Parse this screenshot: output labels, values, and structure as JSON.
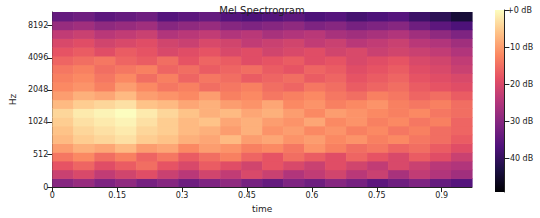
{
  "chart_data": {
    "type": "heatmap",
    "title": "Mel Spectrogram",
    "x_label": "time",
    "y_label": "Hz",
    "xlim": [
      0,
      0.97
    ],
    "xticks": [
      0,
      0.15,
      0.3,
      0.45,
      0.6,
      0.75,
      0.9
    ],
    "ylim": [
      0,
      11025
    ],
    "yticks": [
      0,
      512,
      1024,
      2048,
      4096,
      8192
    ],
    "x_edges": [
      0,
      0.0485,
      0.097,
      0.1455,
      0.194,
      0.2425,
      0.291,
      0.3395,
      0.388,
      0.4365,
      0.485,
      0.5335,
      0.582,
      0.6305,
      0.679,
      0.7275,
      0.776,
      0.8245,
      0.873,
      0.9215,
      0.97
    ],
    "y_edges": [
      0,
      137,
      273,
      410,
      546,
      683,
      819,
      956,
      1136,
      1373,
      1659,
      2004,
      2422,
      2926,
      3536,
      4272,
      5162,
      6237,
      7536,
      9106,
      11025
    ],
    "z": [
      [
        -30,
        -28,
        -31,
        -29,
        -32,
        -30,
        -33,
        -31,
        -29,
        -32,
        -34,
        -31,
        -33,
        -30,
        -32,
        -35,
        -33,
        -31,
        -34,
        -36
      ],
      [
        -22,
        -20,
        -23,
        -21,
        -19,
        -22,
        -24,
        -21,
        -23,
        -20,
        -22,
        -25,
        -23,
        -21,
        -24,
        -22,
        -26,
        -23,
        -25,
        -27
      ],
      [
        -18,
        -16,
        -19,
        -17,
        -15,
        -18,
        -20,
        -17,
        -19,
        -21,
        -18,
        -20,
        -22,
        -19,
        -21,
        -23,
        -20,
        -22,
        -24,
        -25
      ],
      [
        -14,
        -12,
        -15,
        -13,
        -16,
        -14,
        -17,
        -15,
        -13,
        -16,
        -18,
        -15,
        -17,
        -19,
        -16,
        -18,
        -20,
        -17,
        -19,
        -22
      ],
      [
        -10,
        -8,
        -9,
        -7,
        -10,
        -9,
        -12,
        -10,
        -11,
        -13,
        -12,
        -14,
        -11,
        -13,
        -15,
        -14,
        -16,
        -15,
        -17,
        -19
      ],
      [
        -7,
        -5,
        -4,
        -3,
        -5,
        -6,
        -8,
        -9,
        -7,
        -10,
        -9,
        -11,
        -10,
        -12,
        -11,
        -13,
        -12,
        -14,
        -15,
        -17
      ],
      [
        -6,
        -4,
        -3,
        -2,
        -4,
        -5,
        -7,
        -8,
        -10,
        -8,
        -11,
        -10,
        -12,
        -11,
        -13,
        -12,
        -14,
        -13,
        -15,
        -16
      ],
      [
        -5,
        -3,
        -2,
        -1,
        -3,
        -5,
        -7,
        -6,
        -9,
        -8,
        -10,
        -11,
        -9,
        -12,
        -11,
        -13,
        -12,
        -14,
        -13,
        -16
      ],
      [
        -4,
        -2,
        -1,
        0,
        -2,
        -4,
        -6,
        -8,
        -7,
        -9,
        -8,
        -10,
        -12,
        -10,
        -11,
        -12,
        -13,
        -12,
        -14,
        -15
      ],
      [
        -7,
        -5,
        -4,
        -3,
        -6,
        -7,
        -9,
        -8,
        -10,
        -11,
        -9,
        -12,
        -11,
        -13,
        -12,
        -11,
        -13,
        -14,
        -13,
        -15
      ],
      [
        -10,
        -8,
        -9,
        -7,
        -10,
        -11,
        -12,
        -10,
        -13,
        -12,
        -14,
        -13,
        -12,
        -14,
        -15,
        -13,
        -14,
        -16,
        -15,
        -17
      ],
      [
        -12,
        -11,
        -13,
        -10,
        -12,
        -14,
        -13,
        -15,
        -14,
        -13,
        -15,
        -16,
        -14,
        -15,
        -17,
        -16,
        -15,
        -17,
        -18,
        -19
      ],
      [
        -13,
        -12,
        -14,
        -12,
        -15,
        -13,
        -16,
        -14,
        -15,
        -17,
        -16,
        -15,
        -17,
        -16,
        -18,
        -17,
        -16,
        -18,
        -19,
        -20
      ],
      [
        -14,
        -13,
        -15,
        -14,
        -13,
        -16,
        -15,
        -17,
        -16,
        -15,
        -17,
        -18,
        -16,
        -17,
        -19,
        -18,
        -17,
        -19,
        -20,
        -22
      ],
      [
        -16,
        -15,
        -14,
        -16,
        -17,
        -15,
        -18,
        -16,
        -17,
        -19,
        -18,
        -17,
        -19,
        -18,
        -20,
        -19,
        -18,
        -20,
        -21,
        -23
      ],
      [
        -18,
        -17,
        -19,
        -17,
        -18,
        -20,
        -19,
        -18,
        -20,
        -19,
        -21,
        -20,
        -19,
        -21,
        -20,
        -22,
        -21,
        -22,
        -23,
        -25
      ],
      [
        -20,
        -19,
        -21,
        -20,
        -19,
        -21,
        -22,
        -20,
        -21,
        -23,
        -22,
        -21,
        -23,
        -22,
        -24,
        -23,
        -22,
        -24,
        -25,
        -27
      ],
      [
        -23,
        -22,
        -24,
        -23,
        -22,
        -25,
        -24,
        -23,
        -25,
        -24,
        -26,
        -25,
        -24,
        -26,
        -27,
        -26,
        -25,
        -27,
        -29,
        -31
      ],
      [
        -28,
        -27,
        -29,
        -28,
        -27,
        -30,
        -29,
        -28,
        -30,
        -31,
        -30,
        -29,
        -31,
        -30,
        -32,
        -31,
        -30,
        -33,
        -35,
        -37
      ],
      [
        -34,
        -33,
        -35,
        -34,
        -33,
        -36,
        -35,
        -34,
        -36,
        -37,
        -36,
        -35,
        -37,
        -36,
        -38,
        -37,
        -36,
        -39,
        -41,
        -44
      ]
    ],
    "colorbar": {
      "range": [
        -49,
        0
      ],
      "ticks": [
        {
          "value": 0,
          "label": "+0 dB"
        },
        {
          "value": -10,
          "label": "-10 dB"
        },
        {
          "value": -20,
          "label": "-20 dB"
        },
        {
          "value": -30,
          "label": "-30 dB"
        },
        {
          "value": -40,
          "label": "-40 dB"
        }
      ]
    }
  }
}
